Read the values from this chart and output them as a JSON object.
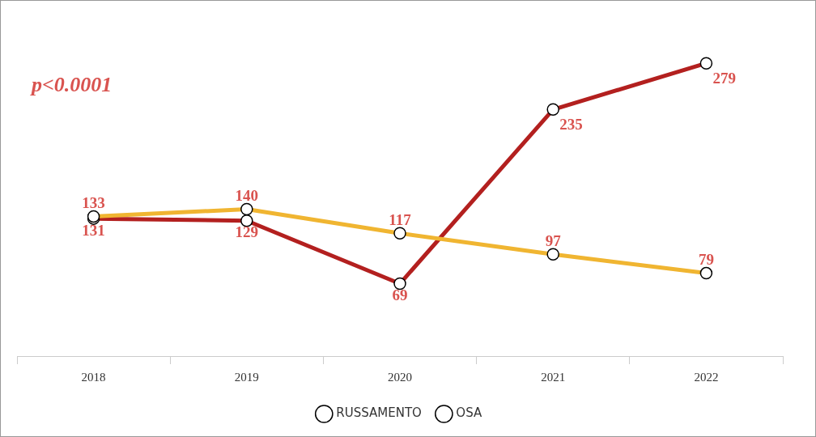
{
  "chart_data": {
    "type": "line",
    "categories": [
      "2018",
      "2019",
      "2020",
      "2021",
      "2022"
    ],
    "series": [
      {
        "name": "RUSSAMENTO",
        "color": "#f0b531",
        "values": [
          133,
          140,
          117,
          97,
          79
        ]
      },
      {
        "name": "OSA",
        "color": "#b3201f",
        "values": [
          131,
          129,
          69,
          235,
          279
        ]
      }
    ],
    "annotations": [
      "p<0.0001"
    ],
    "data_labels": true,
    "marker": "circle",
    "legend": "bottom",
    "grid": false,
    "tick_labels": "x"
  }
}
